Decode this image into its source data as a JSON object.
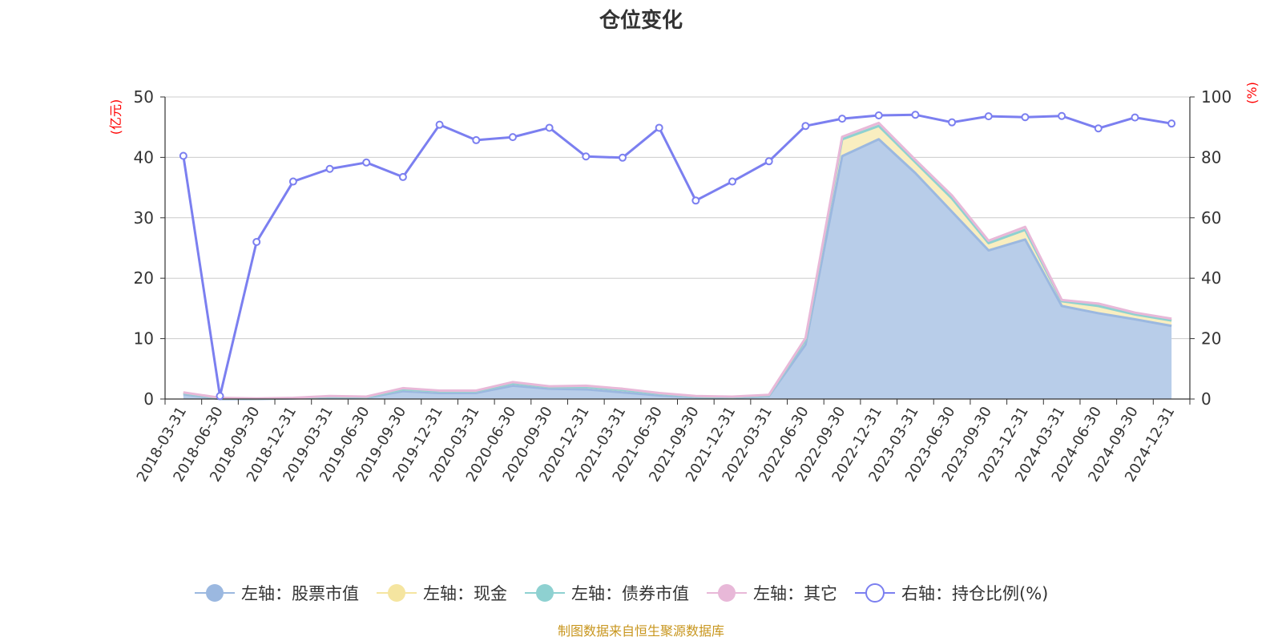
{
  "chart_data": {
    "type": "area",
    "title": "仓位变化",
    "left_axis_unit": "(亿元)",
    "right_axis_unit": "(%)",
    "ylim_left": [
      0,
      50
    ],
    "ylim_right": [
      0,
      100
    ],
    "yticks_left": [
      "0",
      "10",
      "20",
      "30",
      "40",
      "50"
    ],
    "yticks_right": [
      "0",
      "20",
      "40",
      "60",
      "80",
      "100"
    ],
    "grid": true,
    "legend_position": "bottom",
    "categories": [
      "2018-03-31",
      "2018-06-30",
      "2018-09-30",
      "2018-12-31",
      "2019-03-31",
      "2019-06-30",
      "2019-09-30",
      "2019-12-31",
      "2020-03-31",
      "2020-06-30",
      "2020-09-30",
      "2020-12-31",
      "2021-03-31",
      "2021-06-30",
      "2021-09-30",
      "2021-12-31",
      "2022-03-31",
      "2022-06-30",
      "2022-09-30",
      "2022-12-31",
      "2023-03-31",
      "2023-06-30",
      "2023-09-30",
      "2023-12-31",
      "2024-03-31",
      "2024-06-30",
      "2024-09-30",
      "2024-12-31"
    ],
    "series": [
      {
        "name": "左轴：股票市值",
        "axis": "left",
        "kind": "stacked-area",
        "color": "#9bb8e0",
        "fill": "#b8cde9",
        "values": [
          0.8,
          0.0,
          0.0,
          0.1,
          0.3,
          0.2,
          1.3,
          1.0,
          1.0,
          2.2,
          1.7,
          1.6,
          1.1,
          0.6,
          0.3,
          0.2,
          0.5,
          9.0,
          40.2,
          43.0,
          37.4,
          31.0,
          24.6,
          26.4,
          15.4,
          14.2,
          13.2,
          12.1
        ]
      },
      {
        "name": "左轴：现金",
        "axis": "left",
        "kind": "stacked-area",
        "color": "#f5e5a0",
        "fill": "#f9eec0",
        "values": [
          0.2,
          0.1,
          0.05,
          0.05,
          0.1,
          0.1,
          0.3,
          0.3,
          0.3,
          0.4,
          0.3,
          0.4,
          0.4,
          0.3,
          0.1,
          0.1,
          0.1,
          0.8,
          2.8,
          2.2,
          1.8,
          2.2,
          1.2,
          1.6,
          0.8,
          1.2,
          0.8,
          0.9
        ]
      },
      {
        "name": "左轴：债券市值",
        "axis": "left",
        "kind": "stacked-area",
        "color": "#8ed1d1",
        "fill": "#bfe5e5",
        "values": [
          0,
          0,
          0,
          0,
          0,
          0,
          0,
          0,
          0,
          0,
          0,
          0,
          0,
          0,
          0,
          0,
          0,
          0,
          0,
          0,
          0,
          0,
          0,
          0,
          0,
          0,
          0,
          0
        ]
      },
      {
        "name": "左轴：其它",
        "axis": "left",
        "kind": "stacked-area",
        "color": "#e8b8d8",
        "fill": "#f0cfe5",
        "values": [
          0.1,
          0.1,
          0.05,
          0.05,
          0.1,
          0.1,
          0.2,
          0.1,
          0.1,
          0.2,
          0.1,
          0.2,
          0.2,
          0.1,
          0.1,
          0.1,
          0.1,
          0.3,
          0.4,
          0.5,
          0.4,
          0.5,
          0.4,
          0.5,
          0.2,
          0.4,
          0.3,
          0.3
        ]
      },
      {
        "name": "右轴：持仓比例(%)",
        "axis": "right",
        "kind": "line",
        "color": "#7b7ff0",
        "values": [
          80.5,
          1.0,
          52.0,
          72.0,
          76.2,
          78.3,
          73.5,
          90.8,
          85.7,
          86.7,
          89.8,
          80.3,
          79.9,
          89.8,
          65.7,
          72.0,
          78.7,
          90.4,
          92.8,
          93.9,
          94.1,
          91.6,
          93.6,
          93.3,
          93.7,
          89.6,
          93.2,
          91.2
        ]
      }
    ]
  },
  "source_note": "制图数据来自恒生聚源数据库"
}
